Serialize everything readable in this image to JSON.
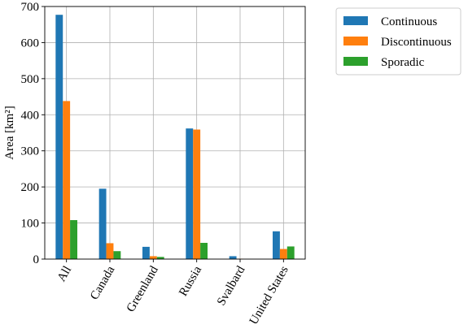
{
  "chart_data": {
    "type": "bar",
    "categories": [
      "All",
      "Canada",
      "Greenland",
      "Russia",
      "Svalbard",
      "United States"
    ],
    "series": [
      {
        "name": "Continuous",
        "color": "#1f77b4",
        "values": [
          677,
          195,
          34,
          362,
          8,
          77
        ]
      },
      {
        "name": "Discontinuous",
        "color": "#ff7f0e",
        "values": [
          438,
          44,
          8,
          359,
          1,
          28
        ]
      },
      {
        "name": "Sporadic",
        "color": "#2ca02c",
        "values": [
          108,
          22,
          6,
          45,
          0,
          35
        ]
      }
    ],
    "ylabel": "Area [km²]",
    "xlabel": "",
    "ylim": [
      0,
      700
    ],
    "yticks": [
      "0",
      "100",
      "200",
      "300",
      "400",
      "500",
      "600",
      "700"
    ],
    "grid": true,
    "legend_position": "outside-top-right"
  }
}
